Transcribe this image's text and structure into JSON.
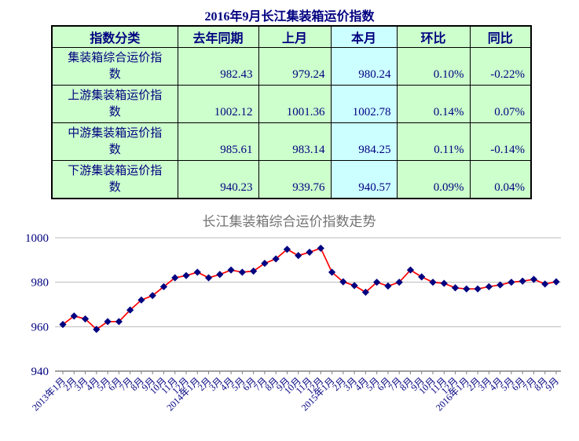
{
  "page_title": "2016年9月长江集装箱运价指数",
  "table": {
    "headers": [
      "指数分类",
      "去年同期",
      "上月",
      "本月",
      "环比",
      "同比"
    ],
    "highlight_column": "本月",
    "rows": [
      {
        "label": "集装箱综合运价指数",
        "values": [
          "982.43",
          "979.24",
          "980.24",
          "0.10%",
          "-0.22%"
        ]
      },
      {
        "label": "上游集装箱运价指数",
        "values": [
          "1002.12",
          "1001.36",
          "1002.78",
          "0.14%",
          "0.07%"
        ]
      },
      {
        "label": "中游集装箱运价指数",
        "values": [
          "985.61",
          "983.14",
          "984.25",
          "0.11%",
          "-0.14%"
        ]
      },
      {
        "label": "下游集装箱运价指数",
        "values": [
          "940.23",
          "939.76",
          "940.57",
          "0.09%",
          "0.04%"
        ]
      }
    ],
    "colors": {
      "header_bg": "#ccffcc",
      "cell_bg": "#ccffcc",
      "highlight_bg": "#ccffff",
      "text": "#000080",
      "border": "#000000"
    }
  },
  "chart_data": {
    "type": "line",
    "title": "长江集装箱综合运价指数走势",
    "x": [
      "2013年1月",
      "2月",
      "3月",
      "4月",
      "5月",
      "6月",
      "7月",
      "8月",
      "9月",
      "10月",
      "11月",
      "12月",
      "2014年1月",
      "2月",
      "3月",
      "4月",
      "5月",
      "6月",
      "7月",
      "8月",
      "9月",
      "10月",
      "11月",
      "12月",
      "2015年1月",
      "2月",
      "3月",
      "4月",
      "5月",
      "6月",
      "7月",
      "8月",
      "9月",
      "10月",
      "11月",
      "12月",
      "2016年1月",
      "2月",
      "3月",
      "4月",
      "5月",
      "6月",
      "7月",
      "8月",
      "9月"
    ],
    "series": [
      {
        "name": "长江集装箱综合运价指数",
        "values": [
          961,
          964.8,
          963.5,
          958.8,
          962.3,
          962.3,
          967.5,
          972,
          974,
          978,
          982,
          983,
          984.5,
          982,
          983.5,
          985.5,
          984.5,
          985,
          988.5,
          990.5,
          994.8,
          992,
          993.5,
          995.3,
          984.5,
          980.2,
          978.5,
          975.5,
          980,
          978.3,
          980,
          985.5,
          982.4,
          980,
          979.5,
          977.5,
          977,
          977,
          978,
          978.8,
          980,
          980.5,
          981.3,
          979.2,
          980.2
        ]
      }
    ],
    "ylim": [
      940,
      1000
    ],
    "yticks": [
      940,
      960,
      980,
      1000
    ],
    "grid": true,
    "legend": "none",
    "title_color": "#737373",
    "line_color": "#ff0000",
    "marker": "diamond",
    "marker_color": "#000080",
    "gridline_color": "#b9b9b9",
    "axis_color": "#808080",
    "tick_label_color": "#000080"
  }
}
